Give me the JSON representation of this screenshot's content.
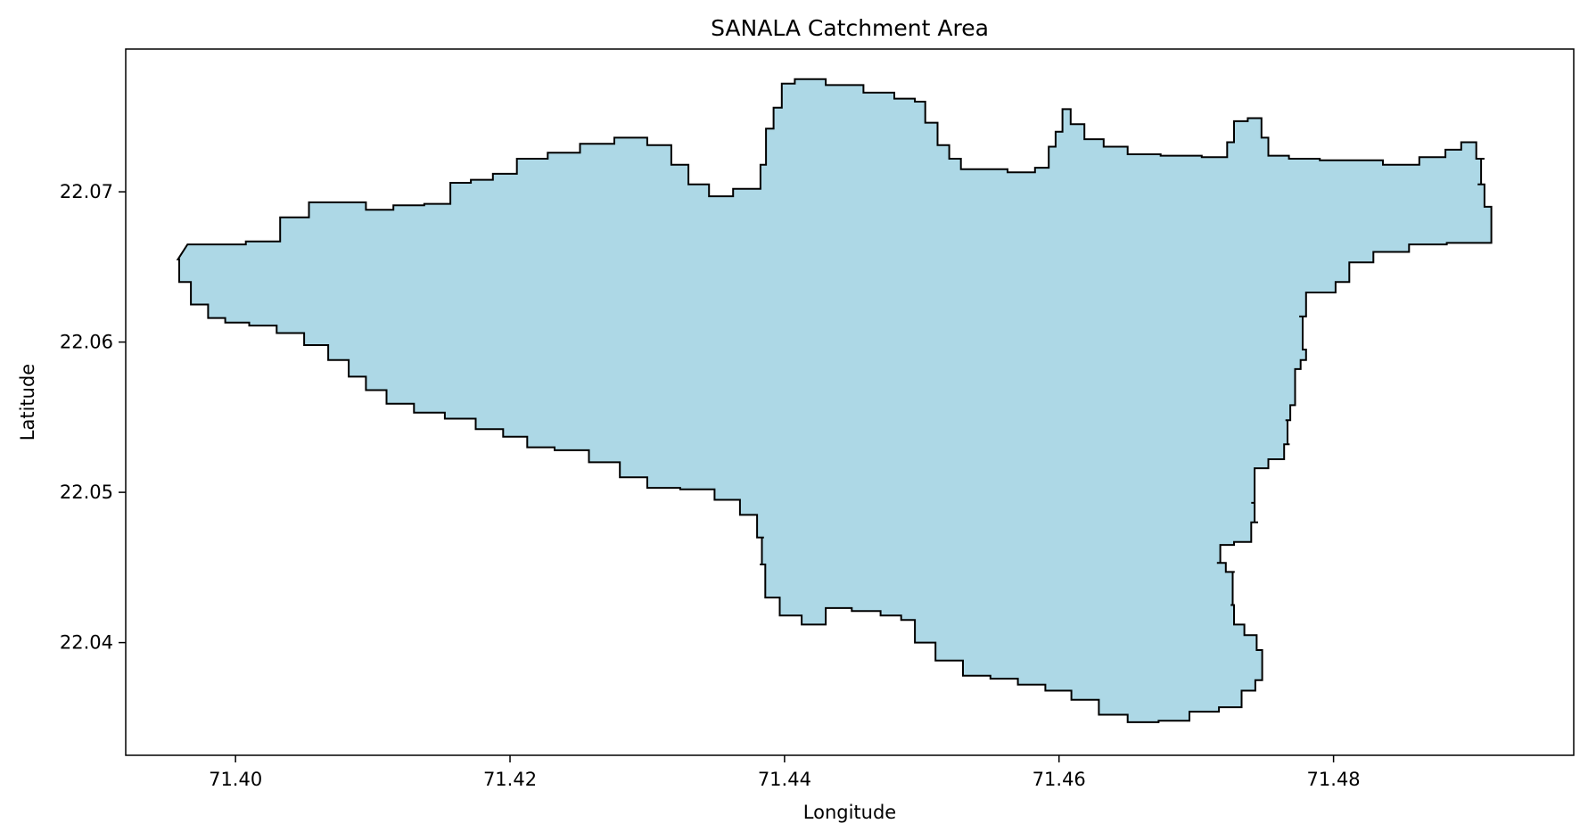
{
  "chart_data": {
    "type": "map",
    "title": "SANALA Catchment Area",
    "xlabel": "Longitude",
    "ylabel": "Latitude",
    "xlim": [
      71.392,
      71.4975
    ],
    "ylim": [
      22.0325,
      22.0795
    ],
    "xticks": [
      71.4,
      71.42,
      71.44,
      71.46,
      71.48
    ],
    "xtick_labels": [
      "71.40",
      "71.42",
      "71.44",
      "71.46",
      "71.48"
    ],
    "yticks": [
      22.04,
      22.05,
      22.06,
      22.07
    ],
    "ytick_labels": [
      "22.04",
      "22.05",
      "22.06",
      "22.07"
    ],
    "grid": false,
    "fill_color": "#add8e6",
    "edge_color": "#000000",
    "boundary": [
      [
        71.3965,
        22.0665
      ],
      [
        71.3995,
        22.0665
      ],
      [
        71.402,
        22.0667
      ],
      [
        71.4045,
        22.0683
      ],
      [
        71.4062,
        22.0693
      ],
      [
        71.4085,
        22.0693
      ],
      [
        71.4105,
        22.0688
      ],
      [
        71.4125,
        22.0691
      ],
      [
        71.415,
        22.0692
      ],
      [
        71.4163,
        22.0706
      ],
      [
        71.418,
        22.0708
      ],
      [
        71.4195,
        22.0712
      ],
      [
        71.4215,
        22.0722
      ],
      [
        71.424,
        22.0726
      ],
      [
        71.4262,
        22.0732
      ],
      [
        71.429,
        22.0736
      ],
      [
        71.431,
        22.0731
      ],
      [
        71.4325,
        22.0718
      ],
      [
        71.4335,
        22.0705
      ],
      [
        71.4355,
        22.0697
      ],
      [
        71.437,
        22.0702
      ],
      [
        71.438,
        22.0702
      ],
      [
        71.4385,
        22.0718
      ],
      [
        71.4388,
        22.0742
      ],
      [
        71.4396,
        22.0756
      ],
      [
        71.44,
        22.0772
      ],
      [
        71.4415,
        22.0775
      ],
      [
        71.4445,
        22.0771
      ],
      [
        71.447,
        22.0766
      ],
      [
        71.449,
        22.0762
      ],
      [
        71.45,
        22.076
      ],
      [
        71.4505,
        22.0746
      ],
      [
        71.4518,
        22.0731
      ],
      [
        71.4522,
        22.0722
      ],
      [
        71.4535,
        22.0715
      ],
      [
        71.455,
        22.0715
      ],
      [
        71.4575,
        22.0713
      ],
      [
        71.459,
        22.0716
      ],
      [
        71.4595,
        22.073
      ],
      [
        71.46,
        22.074
      ],
      [
        71.4605,
        22.0755
      ],
      [
        71.4612,
        22.0745
      ],
      [
        71.4625,
        22.0735
      ],
      [
        71.464,
        22.073
      ],
      [
        71.466,
        22.0725
      ],
      [
        71.4688,
        22.0724
      ],
      [
        71.472,
        22.0723
      ],
      [
        71.4725,
        22.0733
      ],
      [
        71.473,
        22.0747
      ],
      [
        71.4745,
        22.0749
      ],
      [
        71.475,
        22.0736
      ],
      [
        71.4755,
        22.0724
      ],
      [
        71.478,
        22.0722
      ],
      [
        71.48,
        22.0721
      ],
      [
        71.4822,
        22.0721
      ],
      [
        71.485,
        22.0718
      ],
      [
        71.4875,
        22.0723
      ],
      [
        71.4888,
        22.0728
      ],
      [
        71.4898,
        22.0733
      ],
      [
        71.491,
        22.0722
      ],
      [
        71.4905,
        22.0705
      ],
      [
        71.4915,
        22.069
      ],
      [
        71.4915,
        22.0676
      ],
      [
        71.4915,
        22.0666
      ],
      [
        71.4895,
        22.0666
      ],
      [
        71.487,
        22.0665
      ],
      [
        71.484,
        22.066
      ],
      [
        71.4818,
        22.0653
      ],
      [
        71.4805,
        22.064
      ],
      [
        71.4798,
        22.0633
      ],
      [
        71.4785,
        22.0633
      ],
      [
        71.4775,
        22.0617
      ],
      [
        71.478,
        22.0595
      ],
      [
        71.478,
        22.0588
      ],
      [
        71.4772,
        22.0582
      ],
      [
        71.4772,
        22.0558
      ],
      [
        71.4765,
        22.0548
      ],
      [
        71.4768,
        22.0532
      ],
      [
        71.476,
        22.0522
      ],
      [
        71.4745,
        22.0516
      ],
      [
        71.474,
        22.0493
      ],
      [
        71.4745,
        22.048
      ],
      [
        71.4735,
        22.0467
      ],
      [
        71.472,
        22.0465
      ],
      [
        71.4715,
        22.0453
      ],
      [
        71.4728,
        22.0447
      ],
      [
        71.4725,
        22.0425
      ],
      [
        71.473,
        22.0412
      ],
      [
        71.474,
        22.0405
      ],
      [
        71.4748,
        22.0395
      ],
      [
        71.4748,
        22.0375
      ],
      [
        71.4738,
        22.0368
      ],
      [
        71.4728,
        22.0357
      ],
      [
        71.4705,
        22.0354
      ],
      [
        71.4685,
        22.0348
      ],
      [
        71.466,
        22.0347
      ],
      [
        71.464,
        22.0352
      ],
      [
        71.4618,
        22.0362
      ],
      [
        71.46,
        22.0368
      ],
      [
        71.458,
        22.0372
      ],
      [
        71.456,
        22.0376
      ],
      [
        71.454,
        22.0378
      ],
      [
        71.452,
        22.0388
      ],
      [
        71.45,
        22.04
      ],
      [
        71.449,
        22.0415
      ],
      [
        71.448,
        22.0418
      ],
      [
        71.446,
        22.0421
      ],
      [
        71.4438,
        22.0423
      ],
      [
        71.4422,
        22.0412
      ],
      [
        71.4403,
        22.0418
      ],
      [
        71.439,
        22.043
      ],
      [
        71.4382,
        22.0452
      ],
      [
        71.4385,
        22.047
      ],
      [
        71.4375,
        22.0485
      ],
      [
        71.436,
        22.0495
      ],
      [
        71.4338,
        22.0502
      ],
      [
        71.431,
        22.0503
      ],
      [
        71.429,
        22.051
      ],
      [
        71.427,
        22.052
      ],
      [
        71.4245,
        22.0528
      ],
      [
        71.422,
        22.053
      ],
      [
        71.4205,
        22.0537
      ],
      [
        71.4185,
        22.0542
      ],
      [
        71.4165,
        22.0549
      ],
      [
        71.414,
        22.0553
      ],
      [
        71.412,
        22.0559
      ],
      [
        71.41,
        22.0568
      ],
      [
        71.409,
        22.0577
      ],
      [
        71.4075,
        22.0588
      ],
      [
        71.406,
        22.0598
      ],
      [
        71.404,
        22.0606
      ],
      [
        71.402,
        22.0611
      ],
      [
        71.4,
        22.0613
      ],
      [
        71.3985,
        22.0616
      ],
      [
        71.3975,
        22.0625
      ],
      [
        71.396,
        22.064
      ],
      [
        71.3958,
        22.0655
      ]
    ]
  }
}
